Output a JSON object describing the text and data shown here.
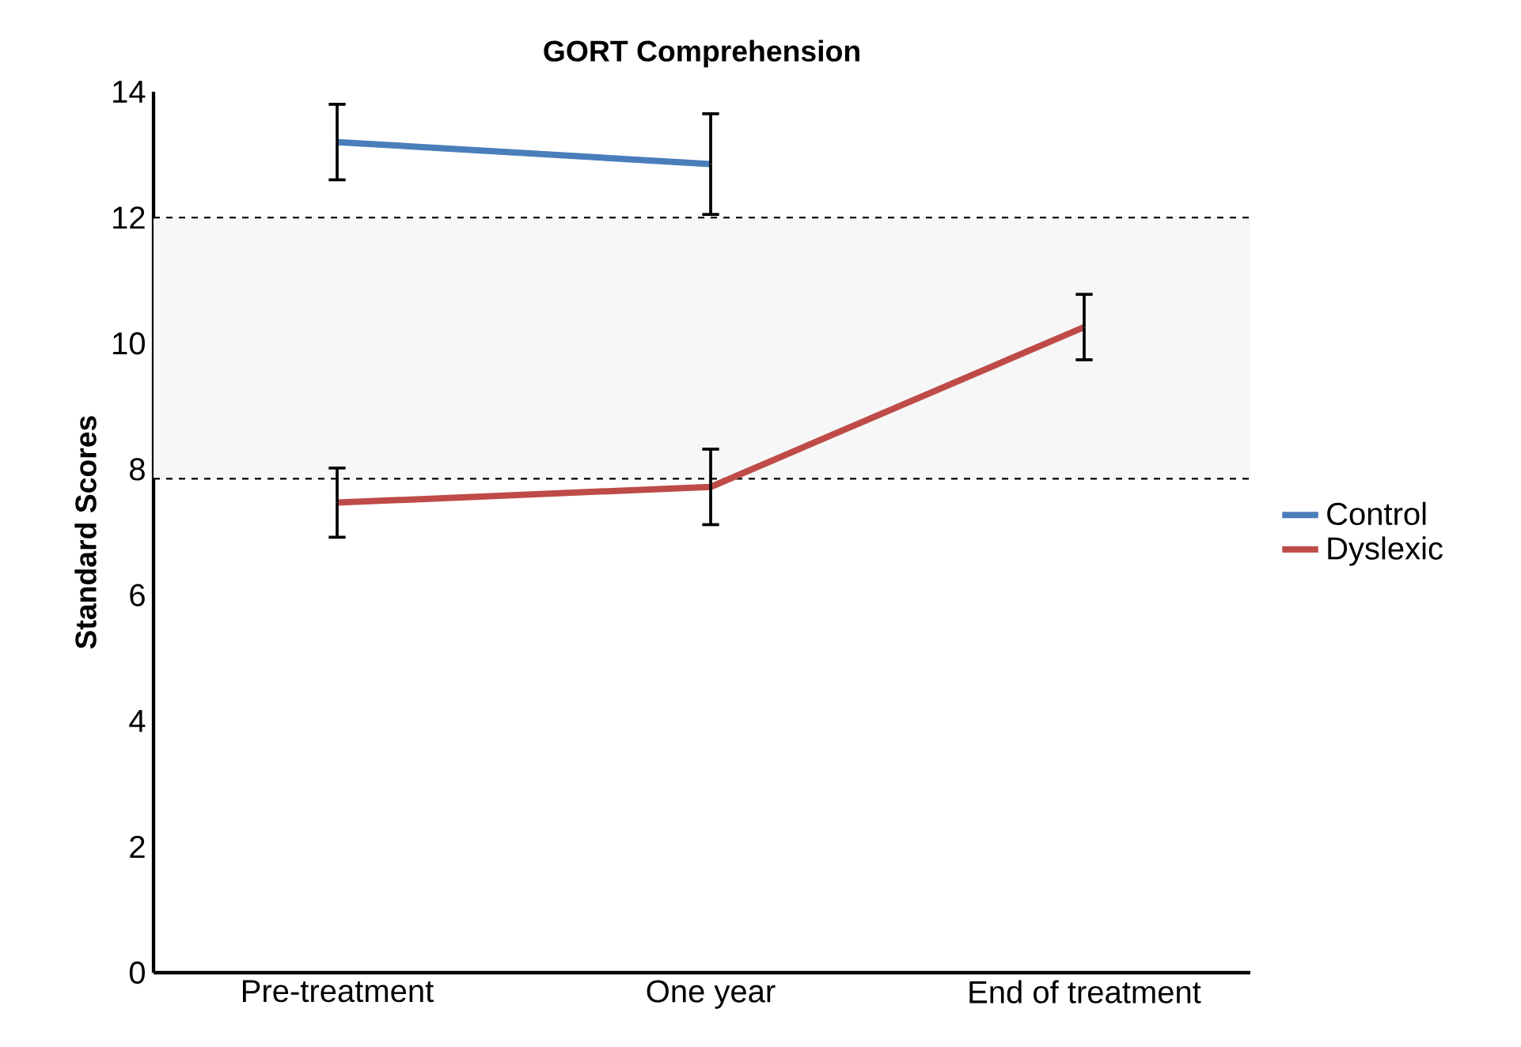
{
  "chart_data": {
    "type": "line",
    "title": "GORT Comprehension",
    "ylabel": "Standard Scores",
    "categories": [
      "Pre-treatment",
      "One year",
      "End of treatment"
    ],
    "series": [
      {
        "name": "Control",
        "color": "#4a7ebb",
        "values": [
          13.2,
          12.85,
          null
        ],
        "errors": [
          0.6,
          0.8,
          null
        ]
      },
      {
        "name": "Dyslexic",
        "color": "#be4b48",
        "values": [
          7.47,
          7.72,
          10.26
        ],
        "errors": [
          0.55,
          0.6,
          0.52
        ]
      }
    ],
    "ylim": [
      0,
      14
    ],
    "yticks": [
      0,
      2,
      4,
      6,
      8,
      10,
      12,
      14
    ],
    "bands": [
      {
        "axis": "y",
        "from": 7.85,
        "to": 12.0,
        "color": "#f7f7f7"
      }
    ],
    "ref_lines": [
      {
        "axis": "y",
        "value": 7.85,
        "line_style": "dashed",
        "color": "#000000"
      },
      {
        "axis": "y",
        "value": 12.0,
        "line_style": "dashed",
        "color": "#000000"
      }
    ],
    "legend": "right",
    "marker": "none",
    "line_style": "solid"
  }
}
